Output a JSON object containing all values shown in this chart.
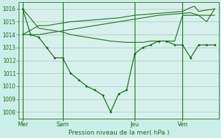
{
  "background_color": "#cceee8",
  "plot_bg_color": "#d8f0ec",
  "grid_color": "#9ec8c0",
  "line_color": "#1a6b1a",
  "title": "Pression niveau de la mer( hPa )",
  "ylim": [
    1007.5,
    1016.5
  ],
  "yticks": [
    1008,
    1009,
    1010,
    1011,
    1012,
    1013,
    1014,
    1015,
    1016
  ],
  "xlim": [
    0,
    25
  ],
  "day_labels": [
    "Mer",
    "Sam",
    "Jeu",
    "Ven"
  ],
  "day_positions": [
    0.5,
    5.5,
    14.5,
    20.5
  ],
  "vline_positions": [
    0.5,
    5.5,
    14.5,
    20.5
  ],
  "line_main_x": [
    0.5,
    1.5,
    2.5,
    3.5,
    4.5,
    5.5,
    6.5,
    7.5,
    8.5,
    9.5,
    10.5,
    11.5,
    12.5,
    13.5,
    14.5,
    15.5,
    16.5,
    17.5,
    18.5,
    19.5,
    20.5,
    21.5,
    22.5,
    23.5,
    24.5
  ],
  "line_main_y": [
    1016.0,
    1014.0,
    1013.8,
    1013.0,
    1012.2,
    1012.2,
    1011.0,
    1010.5,
    1010.0,
    1009.7,
    1009.3,
    1008.0,
    1009.4,
    1009.7,
    1012.5,
    1013.0,
    1013.2,
    1013.5,
    1013.5,
    1013.2,
    1013.2,
    1012.2,
    1013.2,
    1013.2,
    1013.2
  ],
  "line_flat1_x": [
    0.5,
    1.5,
    2.5,
    3.5,
    4.5,
    5.5,
    6.5,
    7.5,
    8.5,
    9.5,
    10.5,
    11.5,
    12.5,
    13.5,
    14.5,
    15.5,
    16.5,
    17.5,
    18.5,
    19.5,
    20.5,
    21.5,
    22.5,
    23.5,
    24.5
  ],
  "line_flat1_y": [
    1014.0,
    1014.0,
    1014.0,
    1014.1,
    1014.2,
    1014.3,
    1014.4,
    1014.5,
    1014.6,
    1014.7,
    1014.8,
    1014.9,
    1015.0,
    1015.1,
    1015.2,
    1015.3,
    1015.4,
    1015.5,
    1015.55,
    1015.6,
    1015.65,
    1015.7,
    1015.5,
    1015.0,
    1016.0
  ],
  "line_flat2_x": [
    0.5,
    2.5,
    3.5,
    4.5,
    5.5,
    6.5,
    7.5,
    8.5,
    9.5,
    10.5,
    11.5,
    12.5,
    13.5,
    14.5,
    15.5,
    16.5,
    17.5,
    18.5,
    19.5,
    20.5,
    21.5,
    22.0,
    22.5,
    24.5
  ],
  "line_flat2_y": [
    1014.0,
    1014.7,
    1014.7,
    1014.8,
    1014.9,
    1015.0,
    1015.05,
    1015.1,
    1015.15,
    1015.2,
    1015.25,
    1015.3,
    1015.4,
    1015.5,
    1015.55,
    1015.6,
    1015.65,
    1015.7,
    1015.75,
    1015.8,
    1016.1,
    1016.2,
    1015.8,
    1016.0
  ],
  "line_flat3_x": [
    0.5,
    2.5,
    3.5,
    4.5,
    5.5,
    6.5,
    7.5,
    8.5,
    9.5,
    10.5,
    11.5,
    12.5,
    13.5,
    14.5,
    15.5,
    16.5,
    17.5,
    18.5,
    19.5,
    20.5,
    21.5,
    22.5,
    23.5,
    24.5
  ],
  "line_flat3_y": [
    1016.0,
    1014.5,
    1014.4,
    1014.3,
    1014.2,
    1014.0,
    1013.9,
    1013.8,
    1013.7,
    1013.6,
    1013.5,
    1013.45,
    1013.4,
    1013.4,
    1013.4,
    1013.5,
    1013.5,
    1013.5,
    1013.5,
    1015.5,
    1015.5,
    1015.5,
    1015.5,
    1015.5
  ]
}
